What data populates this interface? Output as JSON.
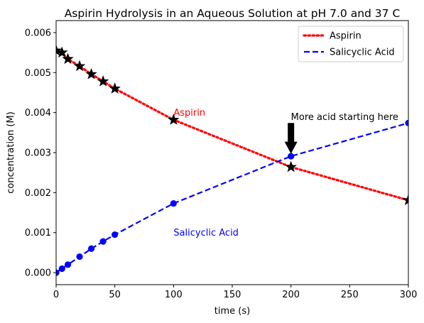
{
  "chart_data": {
    "type": "line",
    "title": "Aspirin Hydrolysis in an Aqueous Solution at pH 7.0 and 37 C",
    "xlabel": "time (s)",
    "ylabel": "concentration (M)",
    "xlim": [
      0,
      300
    ],
    "ylim": [
      -0.0003,
      0.0063
    ],
    "xticks": [
      0,
      50,
      100,
      150,
      200,
      250,
      300
    ],
    "xtick_labels": [
      "0",
      "50",
      "100",
      "150",
      "200",
      "250",
      "300"
    ],
    "yticks": [
      0.0,
      0.001,
      0.002,
      0.003,
      0.004,
      0.005,
      0.006
    ],
    "ytick_labels": [
      "0.000",
      "0.001",
      "0.002",
      "0.003",
      "0.004",
      "0.005",
      "0.006"
    ],
    "grid": false,
    "legend_position": "top-right",
    "series": [
      {
        "name": "Aspirin",
        "color": "#ff0000",
        "line_style": "dotted",
        "marker": "star",
        "marker_color": "#000000",
        "x": [
          0,
          5,
          10,
          20,
          30,
          40,
          50,
          100,
          200,
          300
        ],
        "y": [
          0.00555,
          0.0055,
          0.00534,
          0.00516,
          0.00496,
          0.00478,
          0.0046,
          0.00382,
          0.00264,
          0.00181
        ]
      },
      {
        "name": "Salicyclic Acid",
        "color": "#0000ff",
        "line_style": "dashed",
        "marker": "circle",
        "marker_color": "#0000ff",
        "x": [
          0,
          5,
          10,
          20,
          30,
          40,
          50,
          100,
          200,
          300
        ],
        "y": [
          0.0,
          0.0001,
          0.0002,
          0.0004,
          0.0006,
          0.00078,
          0.00095,
          0.00173,
          0.00291,
          0.00374
        ]
      }
    ],
    "annotations": [
      {
        "text": "Aspirin",
        "x": 100,
        "y": 0.004,
        "color": "#ff0000"
      },
      {
        "text": "Salicyclic Acid",
        "x": 100,
        "y": 0.001,
        "color": "#0000ff"
      },
      {
        "text": "More acid starting here",
        "x": 200,
        "y": 0.0039,
        "color": "#000000",
        "arrow_to_x": 200,
        "arrow_to_y": 0.0029
      }
    ]
  }
}
